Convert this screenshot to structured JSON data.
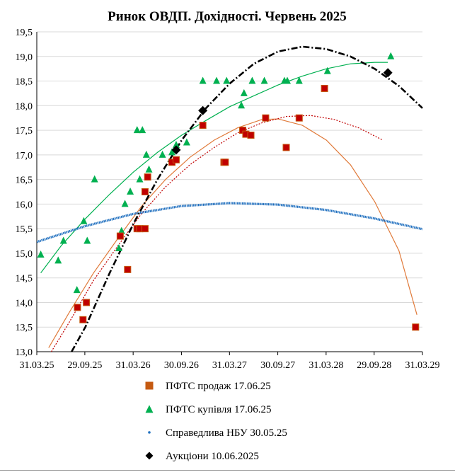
{
  "chart_data": {
    "type": "scatter",
    "title": "Ринок ОВДП. Дохідності. Червень 2025",
    "xlabel": "",
    "ylabel": "",
    "x_tick_labels": [
      "31.03.25",
      "29.09.25",
      "31.03.26",
      "30.09.26",
      "31.03.27",
      "30.09.27",
      "31.03.28",
      "29.09.28",
      "31.03.29"
    ],
    "x_tick_dates": [
      "2025-03-31",
      "2025-09-29",
      "2026-03-31",
      "2026-09-30",
      "2027-03-31",
      "2027-09-30",
      "2028-03-31",
      "2028-09-29",
      "2029-03-31"
    ],
    "y_tick_labels": [
      "13,0",
      "13,5",
      "14,0",
      "14,5",
      "15,0",
      "15,5",
      "16,0",
      "16,5",
      "17,0",
      "17,5",
      "18,0",
      "18,5",
      "19,0",
      "19,5"
    ],
    "xlim": [
      "2025-03-31",
      "2029-03-31"
    ],
    "ylim": [
      13.0,
      19.5
    ],
    "grid": "horizontal",
    "legend_position": "bottom",
    "series": [
      {
        "name": "ПФТС продаж 17.06.25",
        "marker": "square",
        "color": "#c00000",
        "edge_color": "#c55a11",
        "trend_color": "#e07a3a",
        "points": [
          [
            "2025-09-01",
            13.9
          ],
          [
            "2025-09-22",
            13.65
          ],
          [
            "2025-10-05",
            14.0
          ],
          [
            "2026-02-10",
            15.35
          ],
          [
            "2026-03-10",
            14.67
          ],
          [
            "2026-04-15",
            15.5
          ],
          [
            "2026-04-25",
            15.5
          ],
          [
            "2026-05-15",
            15.5
          ],
          [
            "2026-05-15",
            16.25
          ],
          [
            "2026-05-25",
            16.55
          ],
          [
            "2026-08-25",
            16.85
          ],
          [
            "2026-09-10",
            16.9
          ],
          [
            "2026-12-20",
            17.6
          ],
          [
            "2027-03-10",
            16.85
          ],
          [
            "2027-03-15",
            16.85
          ],
          [
            "2027-05-20",
            17.5
          ],
          [
            "2027-06-01",
            17.42
          ],
          [
            "2027-06-20",
            17.4
          ],
          [
            "2027-08-15",
            17.75
          ],
          [
            "2027-11-01",
            17.15
          ],
          [
            "2027-12-20",
            17.75
          ],
          [
            "2028-03-25",
            18.35
          ],
          [
            "2029-03-05",
            13.5
          ]
        ]
      },
      {
        "name": "ПФТС купівля 17.06.25",
        "marker": "triangle",
        "color": "#00b050",
        "trend_color": "#00b050",
        "points": [
          [
            "2025-04-15",
            14.97
          ],
          [
            "2025-06-20",
            14.85
          ],
          [
            "2025-07-10",
            15.25
          ],
          [
            "2025-08-30",
            14.25
          ],
          [
            "2025-09-25",
            15.65
          ],
          [
            "2025-10-08",
            15.25
          ],
          [
            "2025-11-05",
            16.5
          ],
          [
            "2026-02-05",
            15.1
          ],
          [
            "2026-02-15",
            15.45
          ],
          [
            "2026-02-28",
            16.0
          ],
          [
            "2026-03-20",
            16.25
          ],
          [
            "2026-04-15",
            17.5
          ],
          [
            "2026-04-25",
            16.5
          ],
          [
            "2026-05-05",
            17.5
          ],
          [
            "2026-05-20",
            17.0
          ],
          [
            "2026-05-30",
            16.7
          ],
          [
            "2026-07-20",
            17.0
          ],
          [
            "2026-08-25",
            17.05
          ],
          [
            "2026-09-10",
            17.2
          ],
          [
            "2026-10-20",
            17.25
          ],
          [
            "2026-12-20",
            18.5
          ],
          [
            "2027-02-10",
            18.5
          ],
          [
            "2027-03-20",
            18.5
          ],
          [
            "2027-05-15",
            18.0
          ],
          [
            "2027-05-25",
            18.25
          ],
          [
            "2027-06-25",
            18.5
          ],
          [
            "2027-08-10",
            18.5
          ],
          [
            "2027-10-25",
            18.5
          ],
          [
            "2027-11-05",
            18.5
          ],
          [
            "2027-12-20",
            18.5
          ],
          [
            "2028-04-05",
            18.7
          ],
          [
            "2028-12-01",
            19.0
          ]
        ]
      },
      {
        "name": "Справедлива НБУ 30.05.25",
        "marker": "dot",
        "color": "#1f6fbf",
        "curve": [
          [
            "2025-03-31",
            15.23
          ],
          [
            "2025-09-29",
            15.55
          ],
          [
            "2026-03-31",
            15.8
          ],
          [
            "2026-09-30",
            15.96
          ],
          [
            "2027-03-31",
            16.02
          ],
          [
            "2027-09-30",
            15.99
          ],
          [
            "2028-03-31",
            15.88
          ],
          [
            "2028-09-29",
            15.71
          ],
          [
            "2029-03-31",
            15.49
          ]
        ]
      },
      {
        "name": "Аукціони 10.06.2025",
        "marker": "diamond",
        "color": "#000000",
        "points": [
          [
            "2026-09-10",
            17.1
          ],
          [
            "2026-12-20",
            17.9
          ],
          [
            "2028-11-20",
            18.67
          ]
        ],
        "curve": [
          [
            "2025-08-10",
            13.0
          ],
          [
            "2025-10-01",
            13.5
          ],
          [
            "2026-01-01",
            14.6
          ],
          [
            "2026-04-01",
            15.6
          ],
          [
            "2026-07-01",
            16.5
          ],
          [
            "2026-10-01",
            17.3
          ],
          [
            "2027-01-01",
            17.95
          ],
          [
            "2027-04-01",
            18.45
          ],
          [
            "2027-07-01",
            18.85
          ],
          [
            "2027-10-01",
            19.1
          ],
          [
            "2028-01-01",
            19.2
          ],
          [
            "2028-04-01",
            19.15
          ],
          [
            "2028-07-01",
            19.0
          ],
          [
            "2028-10-01",
            18.75
          ],
          [
            "2029-01-01",
            18.4
          ],
          [
            "2029-03-31",
            17.95
          ]
        ]
      }
    ],
    "trend_curves": [
      {
        "series": "ПФТС продаж 17.06.25",
        "style": "solid",
        "color": "#e07a3a",
        "curve": [
          [
            "2025-05-15",
            13.08
          ],
          [
            "2025-08-01",
            13.8
          ],
          [
            "2025-11-01",
            14.6
          ],
          [
            "2026-02-01",
            15.3
          ],
          [
            "2026-05-01",
            15.95
          ],
          [
            "2026-08-01",
            16.5
          ],
          [
            "2026-11-01",
            16.95
          ],
          [
            "2027-02-01",
            17.3
          ],
          [
            "2027-05-01",
            17.55
          ],
          [
            "2027-08-01",
            17.72
          ],
          [
            "2027-10-01",
            17.73
          ],
          [
            "2028-01-01",
            17.6
          ],
          [
            "2028-04-01",
            17.3
          ],
          [
            "2028-07-01",
            16.8
          ],
          [
            "2028-10-01",
            16.05
          ],
          [
            "2029-01-01",
            15.05
          ],
          [
            "2029-03-10",
            13.75
          ]
        ]
      },
      {
        "series": "ПФТС продаж 17.06.25",
        "style": "dotted",
        "color": "#c00000",
        "curve": [
          [
            "2025-05-25",
            13.0
          ],
          [
            "2025-08-01",
            13.6
          ],
          [
            "2025-11-01",
            14.45
          ],
          [
            "2026-02-01",
            15.15
          ],
          [
            "2026-05-01",
            15.8
          ],
          [
            "2026-08-01",
            16.35
          ],
          [
            "2026-11-01",
            16.8
          ],
          [
            "2027-02-01",
            17.15
          ],
          [
            "2027-05-01",
            17.45
          ],
          [
            "2027-08-01",
            17.65
          ],
          [
            "2027-11-01",
            17.78
          ],
          [
            "2028-02-01",
            17.8
          ],
          [
            "2028-05-01",
            17.72
          ],
          [
            "2028-08-01",
            17.55
          ],
          [
            "2028-11-01",
            17.3
          ]
        ]
      },
      {
        "series": "ПФТС купівля 17.06.25",
        "style": "solid",
        "color": "#00b050",
        "curve": [
          [
            "2025-04-15",
            14.6
          ],
          [
            "2025-07-01",
            15.15
          ],
          [
            "2025-10-01",
            15.7
          ],
          [
            "2026-01-01",
            16.2
          ],
          [
            "2026-04-01",
            16.65
          ],
          [
            "2026-07-01",
            17.05
          ],
          [
            "2026-10-01",
            17.4
          ],
          [
            "2027-01-01",
            17.7
          ],
          [
            "2027-04-01",
            17.98
          ],
          [
            "2027-07-01",
            18.2
          ],
          [
            "2027-10-01",
            18.42
          ],
          [
            "2028-01-01",
            18.6
          ],
          [
            "2028-04-01",
            18.75
          ],
          [
            "2028-07-01",
            18.85
          ],
          [
            "2028-10-01",
            18.88
          ],
          [
            "2028-11-20",
            18.88
          ]
        ]
      }
    ]
  }
}
